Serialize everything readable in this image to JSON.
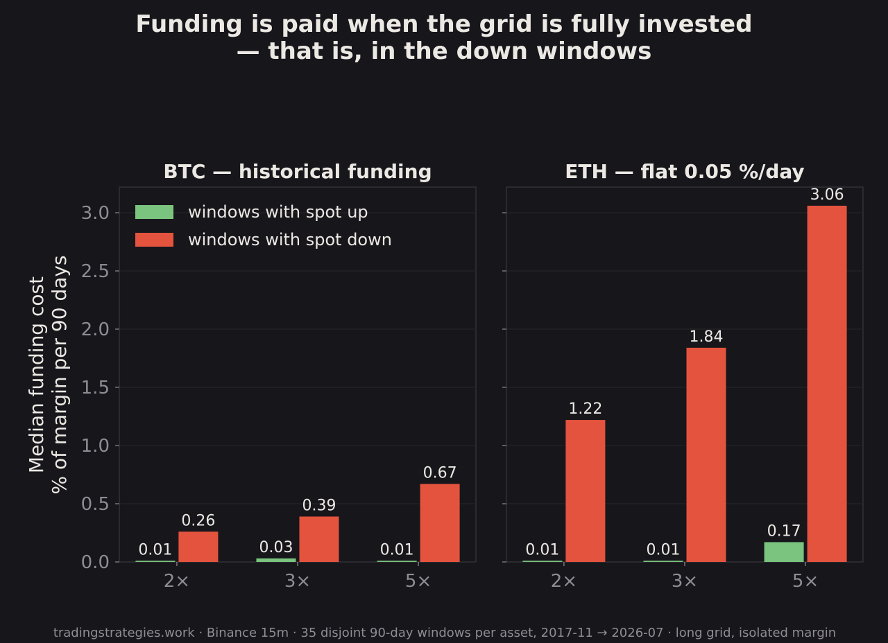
{
  "chart_data": [
    {
      "type": "bar",
      "title": "BTC — historical funding",
      "categories": [
        "2×",
        "3×",
        "5×"
      ],
      "series": [
        {
          "name": "windows with spot up",
          "color": "#7bc47f",
          "values": [
            0.01,
            0.03,
            0.01
          ]
        },
        {
          "name": "windows with spot down",
          "color": "#e4533d",
          "values": [
            0.26,
            0.39,
            0.67
          ]
        }
      ],
      "data_labels": [
        [
          "0.01",
          "0.03",
          "0.01"
        ],
        [
          "0.26",
          "0.39",
          "0.67"
        ]
      ],
      "ylabel": "Median funding cost\n% of margin per 90 days",
      "yticks": [
        "0.0",
        "0.5",
        "1.0",
        "1.5",
        "2.0",
        "2.5",
        "3.0"
      ],
      "ylim": [
        0,
        3.2
      ],
      "grid": true,
      "legend": "top-left"
    },
    {
      "type": "bar",
      "title": "ETH — flat 0.05 %/day",
      "categories": [
        "2×",
        "3×",
        "5×"
      ],
      "series": [
        {
          "name": "windows with spot up",
          "color": "#7bc47f",
          "values": [
            0.01,
            0.01,
            0.17
          ]
        },
        {
          "name": "windows with spot down",
          "color": "#e4533d",
          "values": [
            1.22,
            1.84,
            3.06
          ]
        }
      ],
      "data_labels": [
        [
          "0.01",
          "0.01",
          "0.17"
        ],
        [
          "1.22",
          "1.84",
          "3.06"
        ]
      ],
      "ylim": [
        0,
        3.2
      ],
      "grid": true,
      "shared_y": true
    }
  ],
  "figure": {
    "title_lines": [
      "Funding is paid when the grid is fully invested",
      "— that is, in the down windows"
    ],
    "ylabel_lines": [
      "Median funding cost",
      "% of margin per 90 days"
    ],
    "footer": "tradingstrategies.work · Binance 15m · 35 disjoint 90-day windows per asset, 2017-11 → 2026-07 · long grid, isolated margin"
  },
  "colors": {
    "background": "#17161b",
    "panel_border": "#303036",
    "grid": "#242328",
    "text": "#ece9e4",
    "tick": "#8f8d93",
    "up": "#7bc47f",
    "down": "#e4533d"
  }
}
